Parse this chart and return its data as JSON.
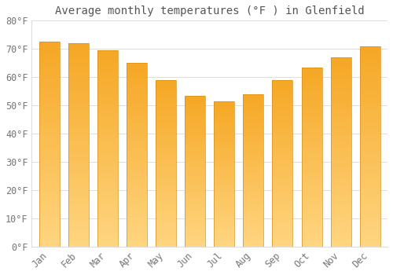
{
  "title": "Average monthly temperatures (°F ) in Glenfield",
  "months": [
    "Jan",
    "Feb",
    "Mar",
    "Apr",
    "May",
    "Jun",
    "Jul",
    "Aug",
    "Sep",
    "Oct",
    "Nov",
    "Dec"
  ],
  "values": [
    72.5,
    72.0,
    69.5,
    65.0,
    59.0,
    53.5,
    51.5,
    54.0,
    59.0,
    63.5,
    67.0,
    71.0
  ],
  "ylim": [
    0,
    80
  ],
  "yticks": [
    0,
    10,
    20,
    30,
    40,
    50,
    60,
    70,
    80
  ],
  "ytick_labels": [
    "0°F",
    "10°F",
    "20°F",
    "30°F",
    "40°F",
    "50°F",
    "60°F",
    "70°F",
    "80°F"
  ],
  "bar_color_dark": "#F5A623",
  "bar_color_light": "#FFD580",
  "bar_edge_color": "#D4901A",
  "background_color": "#FFFFFF",
  "grid_color": "#DDDDDD",
  "title_color": "#555555",
  "tick_color": "#777777",
  "title_fontsize": 10,
  "tick_fontsize": 8.5,
  "bar_width": 0.7,
  "gradient_steps": 50
}
